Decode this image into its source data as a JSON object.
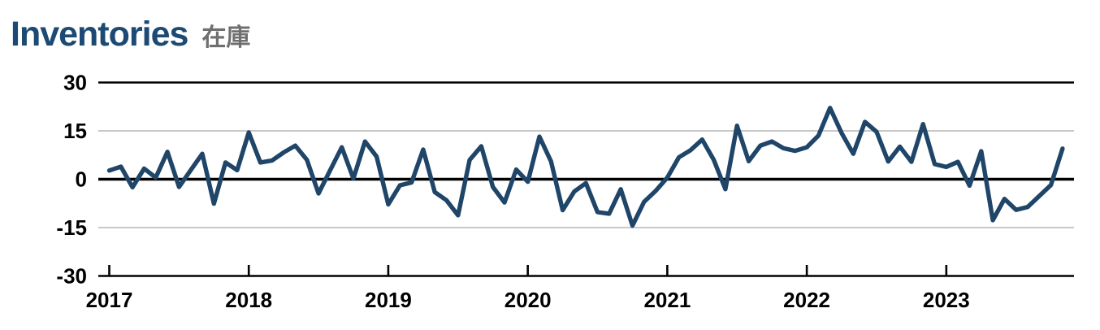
{
  "header": {
    "title": "Inventories",
    "subtitle": "在庫"
  },
  "colors": {
    "title": "#1c4a74",
    "subtitle": "#6f6f6f",
    "line": "#1f4568",
    "axis": "#000000",
    "zero_line": "#000000",
    "grid_minor": "#c8c8c8",
    "tick_label": "#000000",
    "background": "#ffffff"
  },
  "chart_data": {
    "type": "line",
    "title": "Inventories",
    "subtitle_jp": "在庫",
    "frequency": "monthly",
    "start": "2017-01",
    "end": "2023-11",
    "x_tick_years": [
      "2017",
      "2018",
      "2019",
      "2020",
      "2021",
      "2022",
      "2023"
    ],
    "y_ticks": [
      30,
      15,
      0,
      -15,
      -30
    ],
    "ylim": [
      -30,
      30
    ],
    "grid": "horizontal-only",
    "legend": "none",
    "series": [
      {
        "name": "Inventories",
        "values": [
          2.7,
          3.9,
          -2.5,
          3.3,
          0.5,
          8.5,
          -2.4,
          2.8,
          7.9,
          -7.6,
          5.2,
          2.8,
          14.5,
          5.2,
          5.8,
          8.3,
          10.4,
          6.0,
          -4.4,
          2.8,
          9.9,
          0.2,
          11.7,
          7.0,
          -7.8,
          -1.9,
          -1.0,
          9.2,
          -4.0,
          -6.5,
          -11.2,
          6.0,
          10.2,
          -2.4,
          -7.2,
          3.0,
          -0.8,
          13.2,
          5.5,
          -9.6,
          -3.8,
          -1.2,
          -10.2,
          -10.7,
          -3.1,
          -14.4,
          -7.0,
          -3.6,
          0.5,
          6.8,
          9.0,
          12.3,
          6.0,
          -3.1,
          16.6,
          5.6,
          10.4,
          11.7,
          9.6,
          8.8,
          9.9,
          13.5,
          22.1,
          14.3,
          7.9,
          17.8,
          14.7,
          5.5,
          10.1,
          5.4,
          17.1,
          4.7,
          3.8,
          5.4,
          -2.0,
          8.7,
          -12.7,
          -6.1,
          -9.5,
          -8.6,
          -5.2,
          -1.8,
          9.5
        ]
      }
    ]
  }
}
